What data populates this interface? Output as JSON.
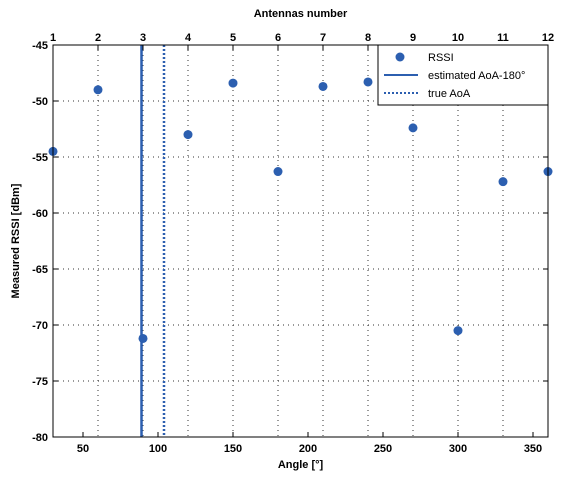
{
  "chart_data": {
    "type": "scatter",
    "title": "",
    "xlabel": "Angle [°]",
    "ylabel": "Measured RSSI [dBm]",
    "top_xlabel": "Antennas number",
    "xlim": [
      30,
      360
    ],
    "ylim": [
      -80,
      -45
    ],
    "xticks": [
      50,
      100,
      150,
      200,
      250,
      300,
      350
    ],
    "yticks": [
      -80,
      -75,
      -70,
      -65,
      -60,
      -55,
      -50,
      -45
    ],
    "top_ticks": [
      {
        "angle": 30,
        "label": "1"
      },
      {
        "angle": 60,
        "label": "2"
      },
      {
        "angle": 90,
        "label": "3"
      },
      {
        "angle": 120,
        "label": "4"
      },
      {
        "angle": 150,
        "label": "5"
      },
      {
        "angle": 180,
        "label": "6"
      },
      {
        "angle": 210,
        "label": "7"
      },
      {
        "angle": 240,
        "label": "8"
      },
      {
        "angle": 270,
        "label": "9"
      },
      {
        "angle": 300,
        "label": "10"
      },
      {
        "angle": 330,
        "label": "11"
      },
      {
        "angle": 360,
        "label": "12"
      }
    ],
    "grid": true,
    "legend_position": "top-right",
    "series": [
      {
        "name": "RSSI",
        "kind": "points",
        "color": "#2c5fb0",
        "x": [
          30,
          60,
          90,
          120,
          150,
          180,
          210,
          240,
          270,
          300,
          330,
          360
        ],
        "y": [
          -54.5,
          -49,
          -71.2,
          -53,
          -48.4,
          -56.3,
          -48.7,
          -48.3,
          -52.4,
          -70.5,
          -57.2,
          -56.3
        ]
      },
      {
        "name": "estimated AoA-180°",
        "kind": "vline",
        "style": "solid",
        "color": "#2c5fb0",
        "x": 89
      },
      {
        "name": "true AoA",
        "kind": "vline",
        "style": "dotted",
        "color": "#2c5fb0",
        "x": 104
      }
    ]
  }
}
